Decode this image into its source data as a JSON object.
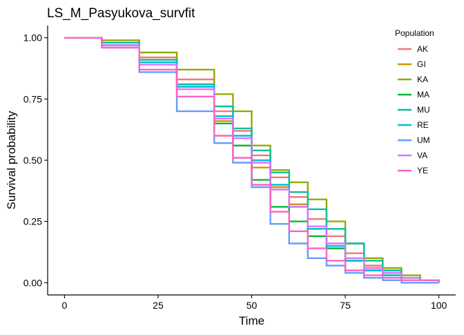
{
  "chart_data": {
    "type": "line",
    "step": true,
    "title": "LS_M_Pasyukova_survfit",
    "xlabel": "Time",
    "ylabel": "Survival probability",
    "xlim": [
      -4.5,
      104.5
    ],
    "ylim": [
      -0.05,
      1.05
    ],
    "x_ticks": [
      0,
      25,
      50,
      75,
      100
    ],
    "x_tick_labels": [
      "0",
      "25",
      "50",
      "75",
      "100"
    ],
    "y_ticks": [
      0,
      0.25,
      0.5,
      0.75,
      1.0
    ],
    "y_tick_labels": [
      "0.00",
      "0.25",
      "0.50",
      "0.75",
      "1.00"
    ],
    "grid": false,
    "legend": {
      "title": "Population",
      "position": "right"
    },
    "series": [
      {
        "name": "AK",
        "color": "#F8766D",
        "x": [
          0,
          10,
          20,
          30,
          40,
          45,
          50,
          55,
          60,
          65,
          70,
          75,
          80,
          85,
          90,
          95,
          100
        ],
        "y": [
          1.0,
          0.98,
          0.92,
          0.83,
          0.7,
          0.62,
          0.52,
          0.43,
          0.35,
          0.26,
          0.19,
          0.12,
          0.07,
          0.04,
          0.02,
          0.01,
          0.0
        ]
      },
      {
        "name": "GI",
        "color": "#D39200",
        "x": [
          0,
          10,
          20,
          30,
          40,
          45,
          50,
          55,
          60,
          65,
          70,
          75,
          80,
          85,
          90,
          95,
          100
        ],
        "y": [
          1.0,
          0.98,
          0.91,
          0.81,
          0.66,
          0.56,
          0.47,
          0.39,
          0.32,
          0.22,
          0.14,
          0.09,
          0.06,
          0.04,
          0.02,
          0.01,
          0.0
        ]
      },
      {
        "name": "KA",
        "color": "#93AA00",
        "x": [
          0,
          10,
          20,
          30,
          40,
          45,
          50,
          55,
          60,
          65,
          70,
          75,
          80,
          85,
          90,
          95,
          100
        ],
        "y": [
          1.0,
          0.99,
          0.94,
          0.87,
          0.77,
          0.7,
          0.56,
          0.46,
          0.41,
          0.34,
          0.25,
          0.16,
          0.1,
          0.06,
          0.03,
          0.01,
          0.0
        ]
      },
      {
        "name": "MA",
        "color": "#00BA38",
        "x": [
          0,
          10,
          20,
          30,
          40,
          45,
          50,
          55,
          60,
          65,
          70,
          75,
          80,
          85,
          90,
          95,
          100
        ],
        "y": [
          1.0,
          0.97,
          0.9,
          0.8,
          0.65,
          0.56,
          0.42,
          0.31,
          0.25,
          0.19,
          0.14,
          0.09,
          0.05,
          0.03,
          0.02,
          0.01,
          0.0
        ]
      },
      {
        "name": "MU",
        "color": "#00C19F",
        "x": [
          0,
          10,
          20,
          30,
          40,
          45,
          50,
          55,
          60,
          65,
          70,
          75,
          80,
          85,
          90,
          95,
          100
        ],
        "y": [
          1.0,
          0.98,
          0.91,
          0.81,
          0.72,
          0.63,
          0.54,
          0.45,
          0.37,
          0.3,
          0.22,
          0.16,
          0.09,
          0.05,
          0.02,
          0.01,
          0.0
        ]
      },
      {
        "name": "RE",
        "color": "#00B9E3",
        "x": [
          0,
          10,
          20,
          30,
          40,
          45,
          50,
          55,
          60,
          65,
          70,
          75,
          80,
          85,
          90,
          95,
          100
        ],
        "y": [
          1.0,
          0.97,
          0.9,
          0.8,
          0.68,
          0.6,
          0.5,
          0.4,
          0.31,
          0.22,
          0.15,
          0.09,
          0.05,
          0.03,
          0.02,
          0.01,
          0.0
        ]
      },
      {
        "name": "UM",
        "color": "#619CFF",
        "x": [
          0,
          10,
          20,
          30,
          40,
          45,
          50,
          55,
          60,
          65,
          70,
          75,
          80,
          85,
          90,
          95,
          100
        ],
        "y": [
          1.0,
          0.96,
          0.86,
          0.7,
          0.57,
          0.49,
          0.39,
          0.24,
          0.16,
          0.1,
          0.07,
          0.04,
          0.02,
          0.01,
          0.0,
          0.0,
          0.0
        ]
      },
      {
        "name": "VA",
        "color": "#DB72FB",
        "x": [
          0,
          10,
          20,
          30,
          40,
          45,
          50,
          55,
          60,
          65,
          70,
          75,
          80,
          85,
          90,
          95,
          100
        ],
        "y": [
          1.0,
          0.97,
          0.89,
          0.79,
          0.67,
          0.59,
          0.49,
          0.38,
          0.31,
          0.23,
          0.16,
          0.1,
          0.06,
          0.04,
          0.02,
          0.01,
          0.0
        ]
      },
      {
        "name": "YE",
        "color": "#FF61C3",
        "x": [
          0,
          10,
          20,
          30,
          40,
          45,
          50,
          55,
          60,
          65,
          70,
          75,
          80,
          85,
          90,
          95,
          100
        ],
        "y": [
          1.0,
          0.96,
          0.87,
          0.76,
          0.6,
          0.51,
          0.4,
          0.29,
          0.21,
          0.14,
          0.09,
          0.05,
          0.03,
          0.02,
          0.01,
          0.01,
          0.0
        ]
      }
    ]
  }
}
